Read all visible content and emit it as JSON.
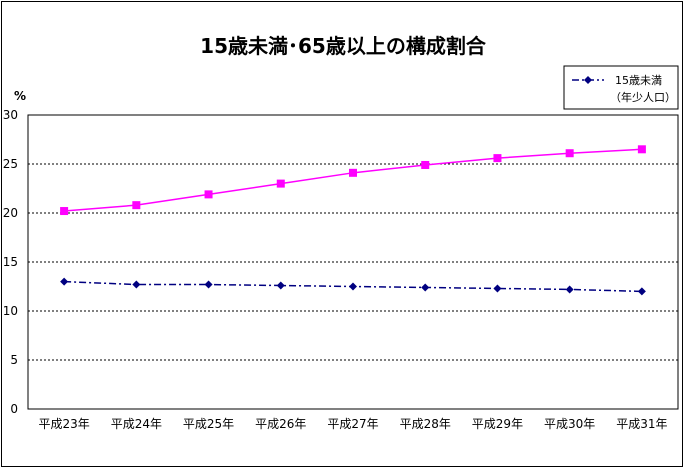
{
  "chart_data": {
    "type": "line",
    "title": "15歳未満･65歳以上の構成割合",
    "ylabel": "%",
    "xlabel": "",
    "ylim": [
      0,
      30
    ],
    "yticks": [
      "0",
      "5",
      "10",
      "15",
      "20",
      "25",
      "30"
    ],
    "grid": true,
    "legend_position": "top-right",
    "categories": [
      "平成23年",
      "平成24年",
      "平成25年",
      "平成26年",
      "平成27年",
      "平成28年",
      "平成29年",
      "平成30年",
      "平成31年"
    ],
    "series": [
      {
        "name": "15歳未満",
        "legend_sub": "（年少人口）",
        "color": "#000080",
        "marker": "diamond",
        "line_style": "dash-dot",
        "values": [
          13.0,
          12.7,
          12.7,
          12.6,
          12.5,
          12.4,
          12.3,
          12.2,
          12.0
        ]
      },
      {
        "color": "#ff00ff",
        "marker": "square",
        "line_style": "solid",
        "values": [
          20.2,
          20.8,
          21.9,
          23.0,
          24.1,
          24.9,
          25.6,
          26.1,
          26.5
        ]
      }
    ]
  }
}
